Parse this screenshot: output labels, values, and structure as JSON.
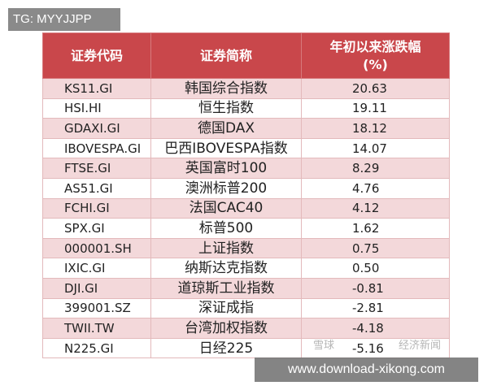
{
  "header": {
    "tag": "TG: MYYJJPP"
  },
  "table": {
    "columns": [
      "证券代码",
      "证券简称",
      "年初以来涨跌幅",
      "(%)"
    ],
    "rows": [
      [
        "KS11.GI",
        "韩国综合指数",
        "20.63"
      ],
      [
        "HSI.HI",
        "恒生指数",
        "19.11"
      ],
      [
        "GDAXI.GI",
        "德国DAX",
        "18.12"
      ],
      [
        "IBOVESPA.GI",
        "巴西IBOVESPA指数",
        "14.07"
      ],
      [
        "FTSE.GI",
        "英国富时100",
        "8.29"
      ],
      [
        "AS51.GI",
        "澳洲标普200",
        "4.76"
      ],
      [
        "FCHI.GI",
        "法国CAC40",
        "4.12"
      ],
      [
        "SPX.GI",
        "标普500",
        "1.62"
      ],
      [
        "000001.SH",
        "上证指数",
        "0.75"
      ],
      [
        "IXIC.GI",
        "纳斯达克指数",
        "0.50"
      ],
      [
        "DJI.GI",
        "道琼斯工业指数",
        "-0.81"
      ],
      [
        "399001.SZ",
        "深证成指",
        "-2.81"
      ],
      [
        "TWII.TW",
        "台湾加权指数",
        "-4.18"
      ],
      [
        "N225.GI",
        "日经225",
        "-5.16"
      ]
    ]
  },
  "watermark": {
    "source": "雪球",
    "source_tail": "经济新闻",
    "site": "www.download-xikong.com"
  }
}
